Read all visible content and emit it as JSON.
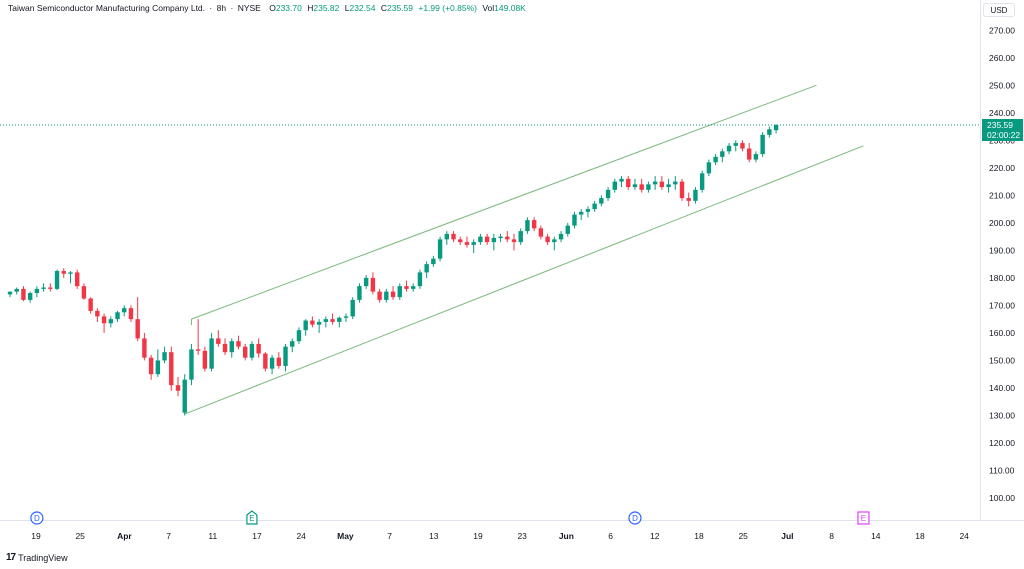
{
  "header": {
    "symbol": "Taiwan Semiconductor Manufacturing Company Ltd.",
    "interval": "8h",
    "exchange": "NYSE",
    "open_label": "O",
    "open": "233.70",
    "high_label": "H",
    "high": "235.82",
    "low_label": "L",
    "low": "232.54",
    "close_label": "C",
    "close": "235.59",
    "change": "+1.99 (+0.85%)",
    "volume_label": "Vol",
    "volume": "149.08K"
  },
  "currency": "USD",
  "last_price": {
    "price": "235.59",
    "countdown": "02:00:22"
  },
  "footer": {
    "brand_mark": "17",
    "brand": "TradingView"
  },
  "colors": {
    "up": "#089981",
    "down": "#f23645",
    "channel": "#7ab87a",
    "price_line": "#089981",
    "dividend": "#2962ff",
    "earnings_past": "#089981",
    "earnings_future": "#e040fb"
  },
  "chart_data": {
    "type": "candlestick",
    "ylim": [
      92,
      281
    ],
    "y_ticks": [
      100,
      110,
      120,
      130,
      140,
      150,
      160,
      170,
      180,
      190,
      200,
      210,
      220,
      230,
      240,
      250,
      260,
      270
    ],
    "x_ticks": [
      {
        "label": "19",
        "bold": false
      },
      {
        "label": "25",
        "bold": false
      },
      {
        "label": "Apr",
        "bold": true
      },
      {
        "label": "7",
        "bold": false
      },
      {
        "label": "11",
        "bold": false
      },
      {
        "label": "17",
        "bold": false
      },
      {
        "label": "24",
        "bold": false
      },
      {
        "label": "May",
        "bold": true
      },
      {
        "label": "7",
        "bold": false
      },
      {
        "label": "13",
        "bold": false
      },
      {
        "label": "19",
        "bold": false
      },
      {
        "label": "23",
        "bold": false
      },
      {
        "label": "Jun",
        "bold": true
      },
      {
        "label": "6",
        "bold": false
      },
      {
        "label": "12",
        "bold": false
      },
      {
        "label": "18",
        "bold": false
      },
      {
        "label": "25",
        "bold": false
      },
      {
        "label": "Jul",
        "bold": true
      },
      {
        "label": "8",
        "bold": false
      },
      {
        "label": "14",
        "bold": false
      },
      {
        "label": "18",
        "bold": false
      },
      {
        "label": "24",
        "bold": false
      }
    ],
    "candles": [
      [
        174,
        175,
        173,
        175
      ],
      [
        175,
        176.5,
        174,
        176
      ],
      [
        176,
        177,
        171.5,
        172
      ],
      [
        172,
        175,
        171,
        174.5
      ],
      [
        174.5,
        177,
        173,
        176
      ],
      [
        176,
        178,
        175,
        176.5
      ],
      [
        176.5,
        178,
        175,
        176
      ],
      [
        176,
        183,
        175.5,
        182.5
      ],
      [
        182.5,
        183.5,
        180,
        181.5
      ],
      [
        181.5,
        182.5,
        178,
        182
      ],
      [
        182,
        183,
        176,
        177
      ],
      [
        177,
        178,
        172,
        172.5
      ],
      [
        172.5,
        173,
        167,
        168
      ],
      [
        168,
        169,
        164,
        166
      ],
      [
        166,
        167,
        160,
        163.5
      ],
      [
        163.5,
        166,
        162,
        165
      ],
      [
        165,
        168,
        164,
        167.5
      ],
      [
        167.5,
        170,
        166,
        169
      ],
      [
        169,
        170,
        164,
        165
      ],
      [
        165,
        173,
        157,
        158
      ],
      [
        158,
        160,
        150,
        151
      ],
      [
        151,
        152,
        143,
        145
      ],
      [
        145,
        154,
        144,
        150
      ],
      [
        150,
        155,
        149,
        153
      ],
      [
        153,
        155,
        139,
        141
      ],
      [
        141,
        144,
        137,
        139
      ],
      [
        131,
        145,
        130,
        143
      ],
      [
        143,
        156,
        141,
        154
      ],
      [
        154,
        165,
        152,
        153.5
      ],
      [
        153.5,
        155,
        146,
        147
      ],
      [
        147,
        160,
        146,
        158
      ],
      [
        158,
        161,
        155,
        156
      ],
      [
        156,
        158,
        152,
        153
      ],
      [
        153,
        158,
        151,
        157
      ],
      [
        157,
        159,
        154,
        155
      ],
      [
        155,
        156,
        150,
        151
      ],
      [
        151,
        157,
        150,
        156
      ],
      [
        156,
        158,
        151,
        152.5
      ],
      [
        152.5,
        153,
        146,
        147
      ],
      [
        147,
        152,
        145,
        151
      ],
      [
        151,
        153,
        147,
        148
      ],
      [
        148,
        156,
        146,
        155
      ],
      [
        155,
        158,
        153,
        157
      ],
      [
        157,
        162,
        156,
        161
      ],
      [
        161,
        165,
        159,
        164.5
      ],
      [
        164.5,
        166,
        162,
        163
      ],
      [
        163,
        165,
        160,
        164
      ],
      [
        164,
        166,
        162,
        165
      ],
      [
        165,
        167,
        163,
        164
      ],
      [
        164,
        166,
        162,
        165.5
      ],
      [
        165.5,
        167,
        164,
        166
      ],
      [
        166,
        173,
        165,
        172
      ],
      [
        172,
        178,
        171,
        177
      ],
      [
        177,
        181,
        176,
        180
      ],
      [
        180,
        182,
        174,
        175
      ],
      [
        175,
        176,
        171,
        172
      ],
      [
        172,
        176,
        171,
        175
      ],
      [
        175,
        177,
        172,
        173
      ],
      [
        173,
        178,
        172,
        177
      ],
      [
        177,
        179,
        175,
        176
      ],
      [
        176,
        178,
        175,
        177
      ],
      [
        177,
        183,
        176,
        182
      ],
      [
        182,
        186,
        180,
        185
      ],
      [
        185,
        188,
        184,
        187
      ],
      [
        187,
        195,
        186,
        194
      ],
      [
        194,
        197,
        192,
        196
      ],
      [
        196,
        197,
        193,
        194
      ],
      [
        194,
        195,
        192,
        193
      ],
      [
        193,
        195,
        191,
        192
      ],
      [
        192,
        194,
        189,
        193
      ],
      [
        193,
        196,
        192,
        195
      ],
      [
        195,
        196,
        192,
        193
      ],
      [
        193,
        196,
        190,
        194.5
      ],
      [
        194.5,
        196,
        193,
        195
      ],
      [
        195,
        197,
        193,
        194
      ],
      [
        194,
        196,
        190,
        193
      ],
      [
        193,
        198,
        192,
        197
      ],
      [
        197,
        202,
        196,
        201
      ],
      [
        201,
        202,
        197,
        198
      ],
      [
        198,
        199,
        194,
        195
      ],
      [
        195,
        196,
        192,
        193
      ],
      [
        193,
        195,
        190,
        194
      ],
      [
        194,
        197,
        193,
        196
      ],
      [
        196,
        200,
        195,
        199
      ],
      [
        199,
        204,
        198,
        203
      ],
      [
        203,
        205,
        201,
        204
      ],
      [
        204,
        206,
        202,
        205
      ],
      [
        205,
        208,
        204,
        207
      ],
      [
        207,
        210,
        206,
        209
      ],
      [
        209,
        213,
        208,
        212
      ],
      [
        212,
        216,
        211,
        215
      ],
      [
        215,
        217,
        213,
        216
      ],
      [
        216,
        217,
        212,
        213
      ],
      [
        213,
        216,
        212,
        214
      ],
      [
        214,
        216,
        211,
        212
      ],
      [
        212,
        215,
        211,
        214
      ],
      [
        214,
        217,
        212,
        215
      ],
      [
        215,
        217,
        212,
        213
      ],
      [
        213,
        216,
        211,
        214
      ],
      [
        214,
        217,
        212,
        215
      ],
      [
        215,
        216,
        208,
        209
      ],
      [
        209,
        211,
        206,
        208
      ],
      [
        208,
        213,
        207,
        212
      ],
      [
        212,
        219,
        211,
        218
      ],
      [
        218,
        223,
        217,
        222
      ],
      [
        222,
        225,
        221,
        224
      ],
      [
        224,
        227,
        222,
        226
      ],
      [
        226,
        229,
        225,
        228
      ],
      [
        228,
        230,
        226,
        229
      ],
      [
        229,
        230,
        226,
        227
      ],
      [
        227,
        229,
        222,
        223
      ],
      [
        223,
        226,
        222,
        225
      ],
      [
        225,
        233,
        224,
        232
      ],
      [
        232,
        235,
        231,
        234
      ],
      [
        233.7,
        235.82,
        232.54,
        235.59
      ]
    ],
    "channel": [
      {
        "name": "upper",
        "x1": 27,
        "y1": 165,
        "x2": 120,
        "y2": 250
      },
      {
        "name": "lower",
        "x1": 26,
        "y1": 130.5,
        "x2": 127,
        "y2": 228
      }
    ],
    "events": [
      {
        "letter": "D",
        "kind": "dividend",
        "x": 4
      },
      {
        "letter": "E",
        "kind": "earnings_past",
        "x": 36
      },
      {
        "letter": "D",
        "kind": "dividend",
        "x": 93
      },
      {
        "letter": "E",
        "kind": "earnings_future",
        "x": 127
      }
    ]
  }
}
